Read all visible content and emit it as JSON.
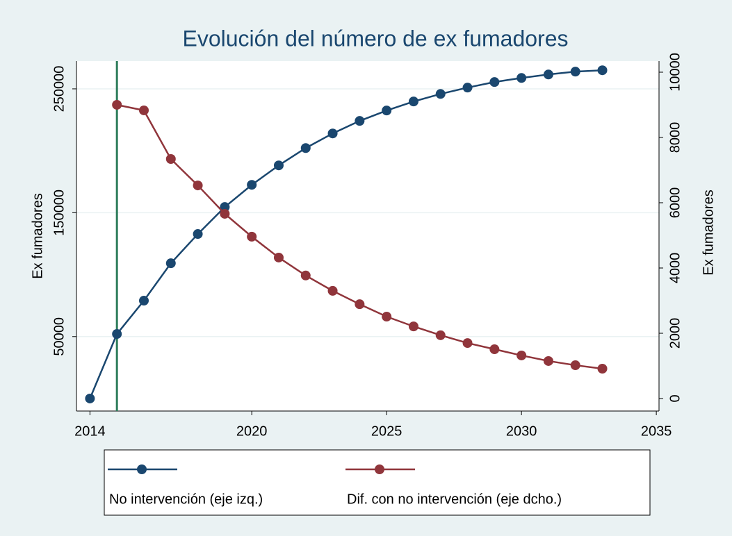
{
  "chart_data": {
    "type": "line",
    "title": "Evolución del número de ex fumadores",
    "y_label": "Ex fumadores",
    "y2_label": "Ex fumadores",
    "x": [
      2014,
      2015,
      2016,
      2017,
      2018,
      2019,
      2020,
      2021,
      2022,
      2023,
      2024,
      2025,
      2026,
      2027,
      2028,
      2029,
      2030,
      2031,
      2032,
      2033
    ],
    "series": [
      {
        "name": "No intervención (eje izq.)",
        "color": "#1a476f",
        "values": [
          0,
          52100,
          79000,
          109200,
          132800,
          154600,
          172500,
          188200,
          202200,
          214000,
          224100,
          232500,
          239800,
          245900,
          251000,
          255500,
          258800,
          261600,
          263900,
          265000
        ]
      },
      {
        "name": "Dif. con no intervención (eje dcho.)",
        "color": "#90353b",
        "axis": "y2",
        "values": [
          null,
          9000,
          8830,
          7340,
          6530,
          5660,
          4960,
          4320,
          3770,
          3300,
          2890,
          2510,
          2210,
          1940,
          1700,
          1510,
          1320,
          1150,
          1020,
          915
        ]
      }
    ],
    "vline": {
      "value": 2015,
      "color": "#2e7d5b"
    },
    "xlim": [
      2013.5,
      2035.1
    ],
    "xticks": [
      2014,
      2020,
      2025,
      2030,
      2035
    ],
    "ylim": [
      -10100,
      272400
    ],
    "yticks": [
      50000,
      150000,
      250000
    ],
    "y2lim": [
      -383,
      10340
    ],
    "y2ticks": [
      0,
      2000,
      4000,
      6000,
      8000,
      10000
    ],
    "grid": true
  }
}
